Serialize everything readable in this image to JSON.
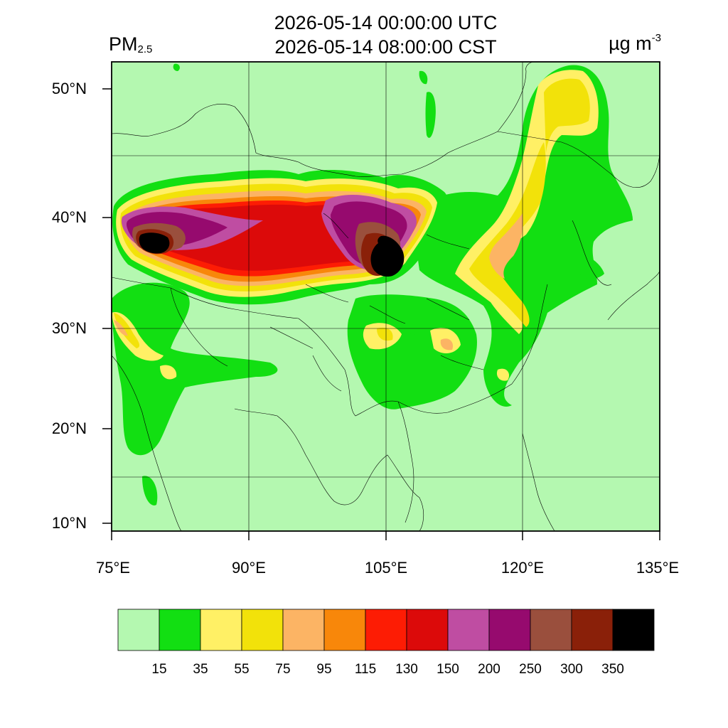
{
  "title": {
    "utc_time": "2026-05-14 00:00:00 UTC",
    "local_time": "2026-05-14 08:00:00 CST",
    "variable": "PM",
    "variable_subscript": "2.5",
    "unit": "µg m",
    "unit_superscript": "-3"
  },
  "map": {
    "lon_range": [
      75,
      135
    ],
    "lat_range": [
      9,
      52
    ],
    "lat_ticks": [
      {
        "value": 50,
        "label": "50°N"
      },
      {
        "value": 40,
        "label": "40°N"
      },
      {
        "value": 30,
        "label": "30°N"
      },
      {
        "value": 20,
        "label": "20°N"
      },
      {
        "value": 10,
        "label": "10°N"
      }
    ],
    "lon_ticks": [
      {
        "value": 75,
        "label": "75°E"
      },
      {
        "value": 90,
        "label": "90°E"
      },
      {
        "value": 105,
        "label": "105°E"
      },
      {
        "value": 120,
        "label": "120°E"
      },
      {
        "value": 135,
        "label": "135°E"
      }
    ]
  },
  "colorbar": {
    "levels": [
      "15",
      "35",
      "55",
      "75",
      "95",
      "115",
      "130",
      "150",
      "200",
      "250",
      "300",
      "350"
    ],
    "colors": [
      "#b4f8b0",
      "#12df12",
      "#fff065",
      "#f2e20a",
      "#fcb464",
      "#f8870a",
      "#fd1c04",
      "#dc0a0a",
      "#bf4da2",
      "#960a6e",
      "#9a4f3d",
      "#8a2009",
      "#000000"
    ]
  },
  "plumes": [
    {
      "name": "taklimakan-plume",
      "level_index": 12
    },
    {
      "name": "hetao-plume",
      "level_index": 12
    },
    {
      "name": "northeast-band",
      "level_index": 3
    },
    {
      "name": "north-china-plain",
      "level_index": 4
    },
    {
      "name": "sichuan-basin",
      "level_index": 3
    },
    {
      "name": "ganges-plain",
      "level_index": 4
    }
  ]
}
